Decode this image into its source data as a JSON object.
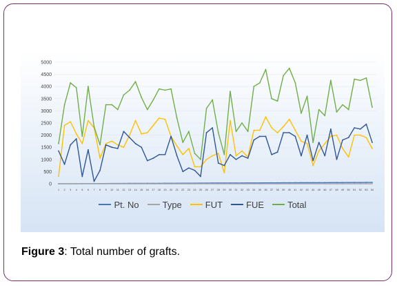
{
  "caption": {
    "label": "Figure 3",
    "text": ": Total number of grafts."
  },
  "colors": {
    "pt_no": "#4472c4",
    "type": "#a5a5a5",
    "fut": "#ffc000",
    "fue": "#2f5597",
    "total": "#70ad47",
    "panel_top": "#ffffff",
    "panel_bottom": "#d6e4f5"
  },
  "chart_data": {
    "type": "line",
    "title": "",
    "xlabel": "",
    "ylabel": "",
    "ylim": [
      0,
      5000
    ],
    "yticks": [
      0,
      500,
      1000,
      1500,
      2000,
      2500,
      3000,
      3500,
      4000,
      4500,
      5000
    ],
    "grid": true,
    "legend_position": "bottom",
    "x": [
      1,
      2,
      3,
      4,
      5,
      6,
      7,
      8,
      9,
      10,
      11,
      12,
      13,
      14,
      15,
      16,
      17,
      18,
      19,
      20,
      21,
      22,
      23,
      24,
      25,
      26,
      27,
      28,
      29,
      30,
      31,
      32,
      33,
      34,
      35,
      36,
      37,
      38,
      39,
      40,
      41,
      42,
      43,
      44,
      45,
      46,
      47,
      48,
      49,
      50,
      51,
      52,
      53,
      54
    ],
    "series": [
      {
        "name": "Pt. No",
        "color_key": "pt_no",
        "values": [
          1,
          2,
          3,
          4,
          5,
          6,
          7,
          8,
          9,
          10,
          11,
          12,
          13,
          14,
          15,
          16,
          17,
          18,
          19,
          20,
          21,
          22,
          23,
          24,
          25,
          26,
          27,
          28,
          29,
          30,
          31,
          32,
          33,
          34,
          35,
          36,
          37,
          38,
          39,
          40,
          41,
          42,
          43,
          44,
          45,
          46,
          47,
          48,
          49,
          50,
          51,
          52,
          53,
          54
        ]
      },
      {
        "name": "Type",
        "color_key": "type",
        "values": [
          1,
          1,
          1,
          1,
          1,
          1,
          1,
          1,
          1,
          1,
          1,
          1,
          1,
          1,
          1,
          1,
          1,
          1,
          1,
          1,
          1,
          1,
          1,
          1,
          1,
          1,
          1,
          1,
          1,
          1,
          1,
          1,
          1,
          1,
          1,
          1,
          1,
          1,
          1,
          1,
          1,
          1,
          1,
          1,
          1,
          1,
          1,
          1,
          1,
          1,
          1,
          1,
          1,
          1
        ]
      },
      {
        "name": "FUT",
        "color_key": "fut",
        "values": [
          300,
          2400,
          2550,
          2050,
          1650,
          2600,
          2300,
          1050,
          1650,
          1750,
          1600,
          1500,
          2000,
          2600,
          2050,
          2100,
          2400,
          2700,
          2650,
          1950,
          1550,
          1200,
          1450,
          700,
          700,
          1000,
          1150,
          1250,
          450,
          2600,
          1150,
          1350,
          1100,
          2200,
          2200,
          2750,
          2300,
          2100,
          2350,
          2650,
          2200,
          1750,
          1650,
          750,
          1350,
          1650,
          1950,
          2000,
          1450,
          1100,
          2000,
          2000,
          1900,
          1450
        ]
      },
      {
        "name": "FUE",
        "color_key": "fue",
        "values": [
          1350,
          800,
          1600,
          1850,
          300,
          1400,
          100,
          550,
          1600,
          1500,
          1450,
          2150,
          1900,
          1650,
          1500,
          950,
          1050,
          1200,
          1200,
          1950,
          1150,
          500,
          650,
          550,
          300,
          2100,
          2300,
          850,
          750,
          1200,
          1000,
          1150,
          1050,
          1800,
          1950,
          1950,
          1200,
          1300,
          2100,
          2100,
          1950,
          1150,
          2000,
          950,
          1700,
          1150,
          2250,
          1000,
          1800,
          1900,
          2300,
          2250,
          2450,
          1700
        ]
      },
      {
        "name": "Total",
        "color_key": "total",
        "values": [
          1650,
          3250,
          4150,
          3950,
          1950,
          4000,
          2350,
          1600,
          3250,
          3250,
          3050,
          3650,
          3850,
          4200,
          3550,
          3050,
          3450,
          3900,
          3850,
          3900,
          2700,
          1700,
          2150,
          1250,
          1000,
          3100,
          3450,
          2100,
          1200,
          3800,
          2150,
          2500,
          2150,
          4000,
          4150,
          4700,
          3500,
          3400,
          4450,
          4750,
          4150,
          2900,
          3600,
          1700,
          3050,
          2800,
          4250,
          2950,
          3250,
          3050,
          4300,
          4250,
          4350,
          3150
        ]
      }
    ]
  }
}
